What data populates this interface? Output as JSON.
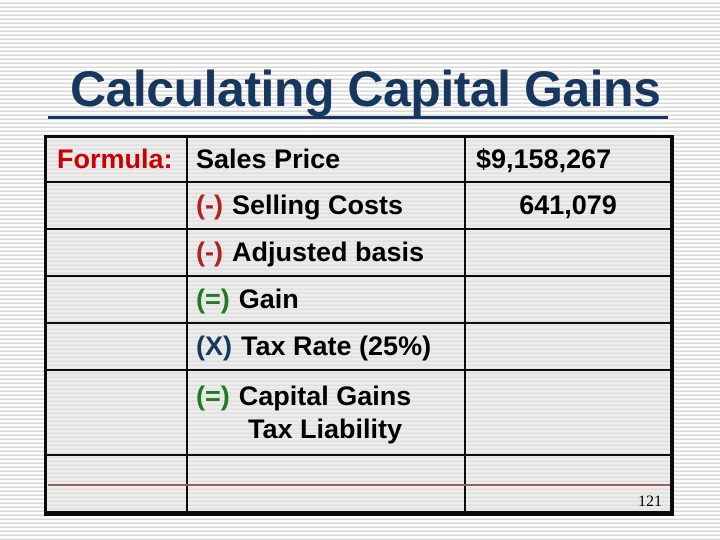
{
  "slide": {
    "title": "Calculating Capital Gains",
    "page_number": "121"
  },
  "table": {
    "header_label": "Formula:",
    "rows": [
      {
        "prefix": "",
        "item": "Sales Price",
        "value": "$9,158,267"
      },
      {
        "prefix": "(-)",
        "item": "Selling Costs",
        "value": "641,079"
      },
      {
        "prefix": "(-)",
        "item": "Adjusted basis",
        "value": ""
      },
      {
        "prefix": "(=)",
        "item": "Gain",
        "value": ""
      },
      {
        "prefix": "(X)",
        "item": "Tax Rate (25%)",
        "value": ""
      },
      {
        "prefix": "(=)",
        "item": "Capital Gains",
        "item_line2": "Tax Liability",
        "value": ""
      }
    ]
  },
  "colors": {
    "title_navy": "#17375E",
    "formula_red": "#CC0000",
    "minus_red": "#B22222",
    "equals_green": "#1E7B1E",
    "times_navy": "#17375E",
    "table_fill_gray": "#ECECEC",
    "stripe_gray": "#D9D9D9",
    "footer_line_red": "#9C5F5F"
  }
}
